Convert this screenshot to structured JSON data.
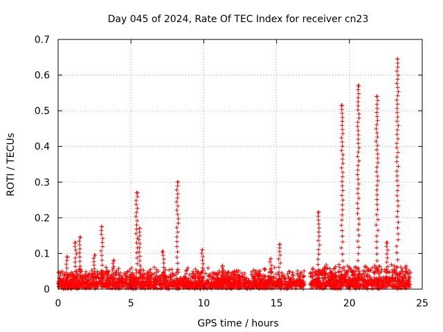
{
  "chart_data": {
    "type": "scatter",
    "title": "Day 045 of 2024, Rate Of TEC Index for receiver cn23",
    "xlabel": "GPS time / hours",
    "ylabel": "ROTI / TECUs",
    "xlim": [
      0,
      25
    ],
    "ylim": [
      0,
      0.7
    ],
    "grid": true,
    "marker": "+",
    "color": "#ff0000",
    "x_ticks": [
      0,
      5,
      10,
      15,
      20,
      25
    ],
    "y_ticks": [
      0,
      0.1,
      0.2,
      0.3,
      0.4,
      0.5,
      0.6,
      0.7
    ],
    "x_tick_labels": [
      "0",
      "5",
      "10",
      "15",
      "20",
      "25"
    ],
    "y_tick_labels": [
      "0",
      "0.1",
      "0.2",
      "0.3",
      "0.4",
      "0.5",
      "0.6",
      "0.7"
    ],
    "baseline_segments": [
      {
        "x_start": 0.0,
        "x_end": 16.9,
        "level": 0.02,
        "spread": 0.035
      },
      {
        "x_start": 17.3,
        "x_end": 24.2,
        "level": 0.025,
        "spread": 0.04
      }
    ],
    "spikes": [
      {
        "x": 0.6,
        "y": 0.09
      },
      {
        "x": 1.2,
        "y": 0.13
      },
      {
        "x": 1.5,
        "y": 0.145
      },
      {
        "x": 2.5,
        "y": 0.095
      },
      {
        "x": 3.0,
        "y": 0.175
      },
      {
        "x": 3.8,
        "y": 0.08
      },
      {
        "x": 5.4,
        "y": 0.27
      },
      {
        "x": 5.6,
        "y": 0.17
      },
      {
        "x": 7.2,
        "y": 0.105
      },
      {
        "x": 8.2,
        "y": 0.3
      },
      {
        "x": 9.9,
        "y": 0.11
      },
      {
        "x": 11.3,
        "y": 0.065
      },
      {
        "x": 14.6,
        "y": 0.085
      },
      {
        "x": 15.2,
        "y": 0.125
      },
      {
        "x": 17.9,
        "y": 0.215
      },
      {
        "x": 18.3,
        "y": 0.06
      },
      {
        "x": 19.5,
        "y": 0.515
      },
      {
        "x": 20.6,
        "y": 0.57
      },
      {
        "x": 21.9,
        "y": 0.54
      },
      {
        "x": 22.6,
        "y": 0.13
      },
      {
        "x": 23.3,
        "y": 0.645
      }
    ]
  }
}
